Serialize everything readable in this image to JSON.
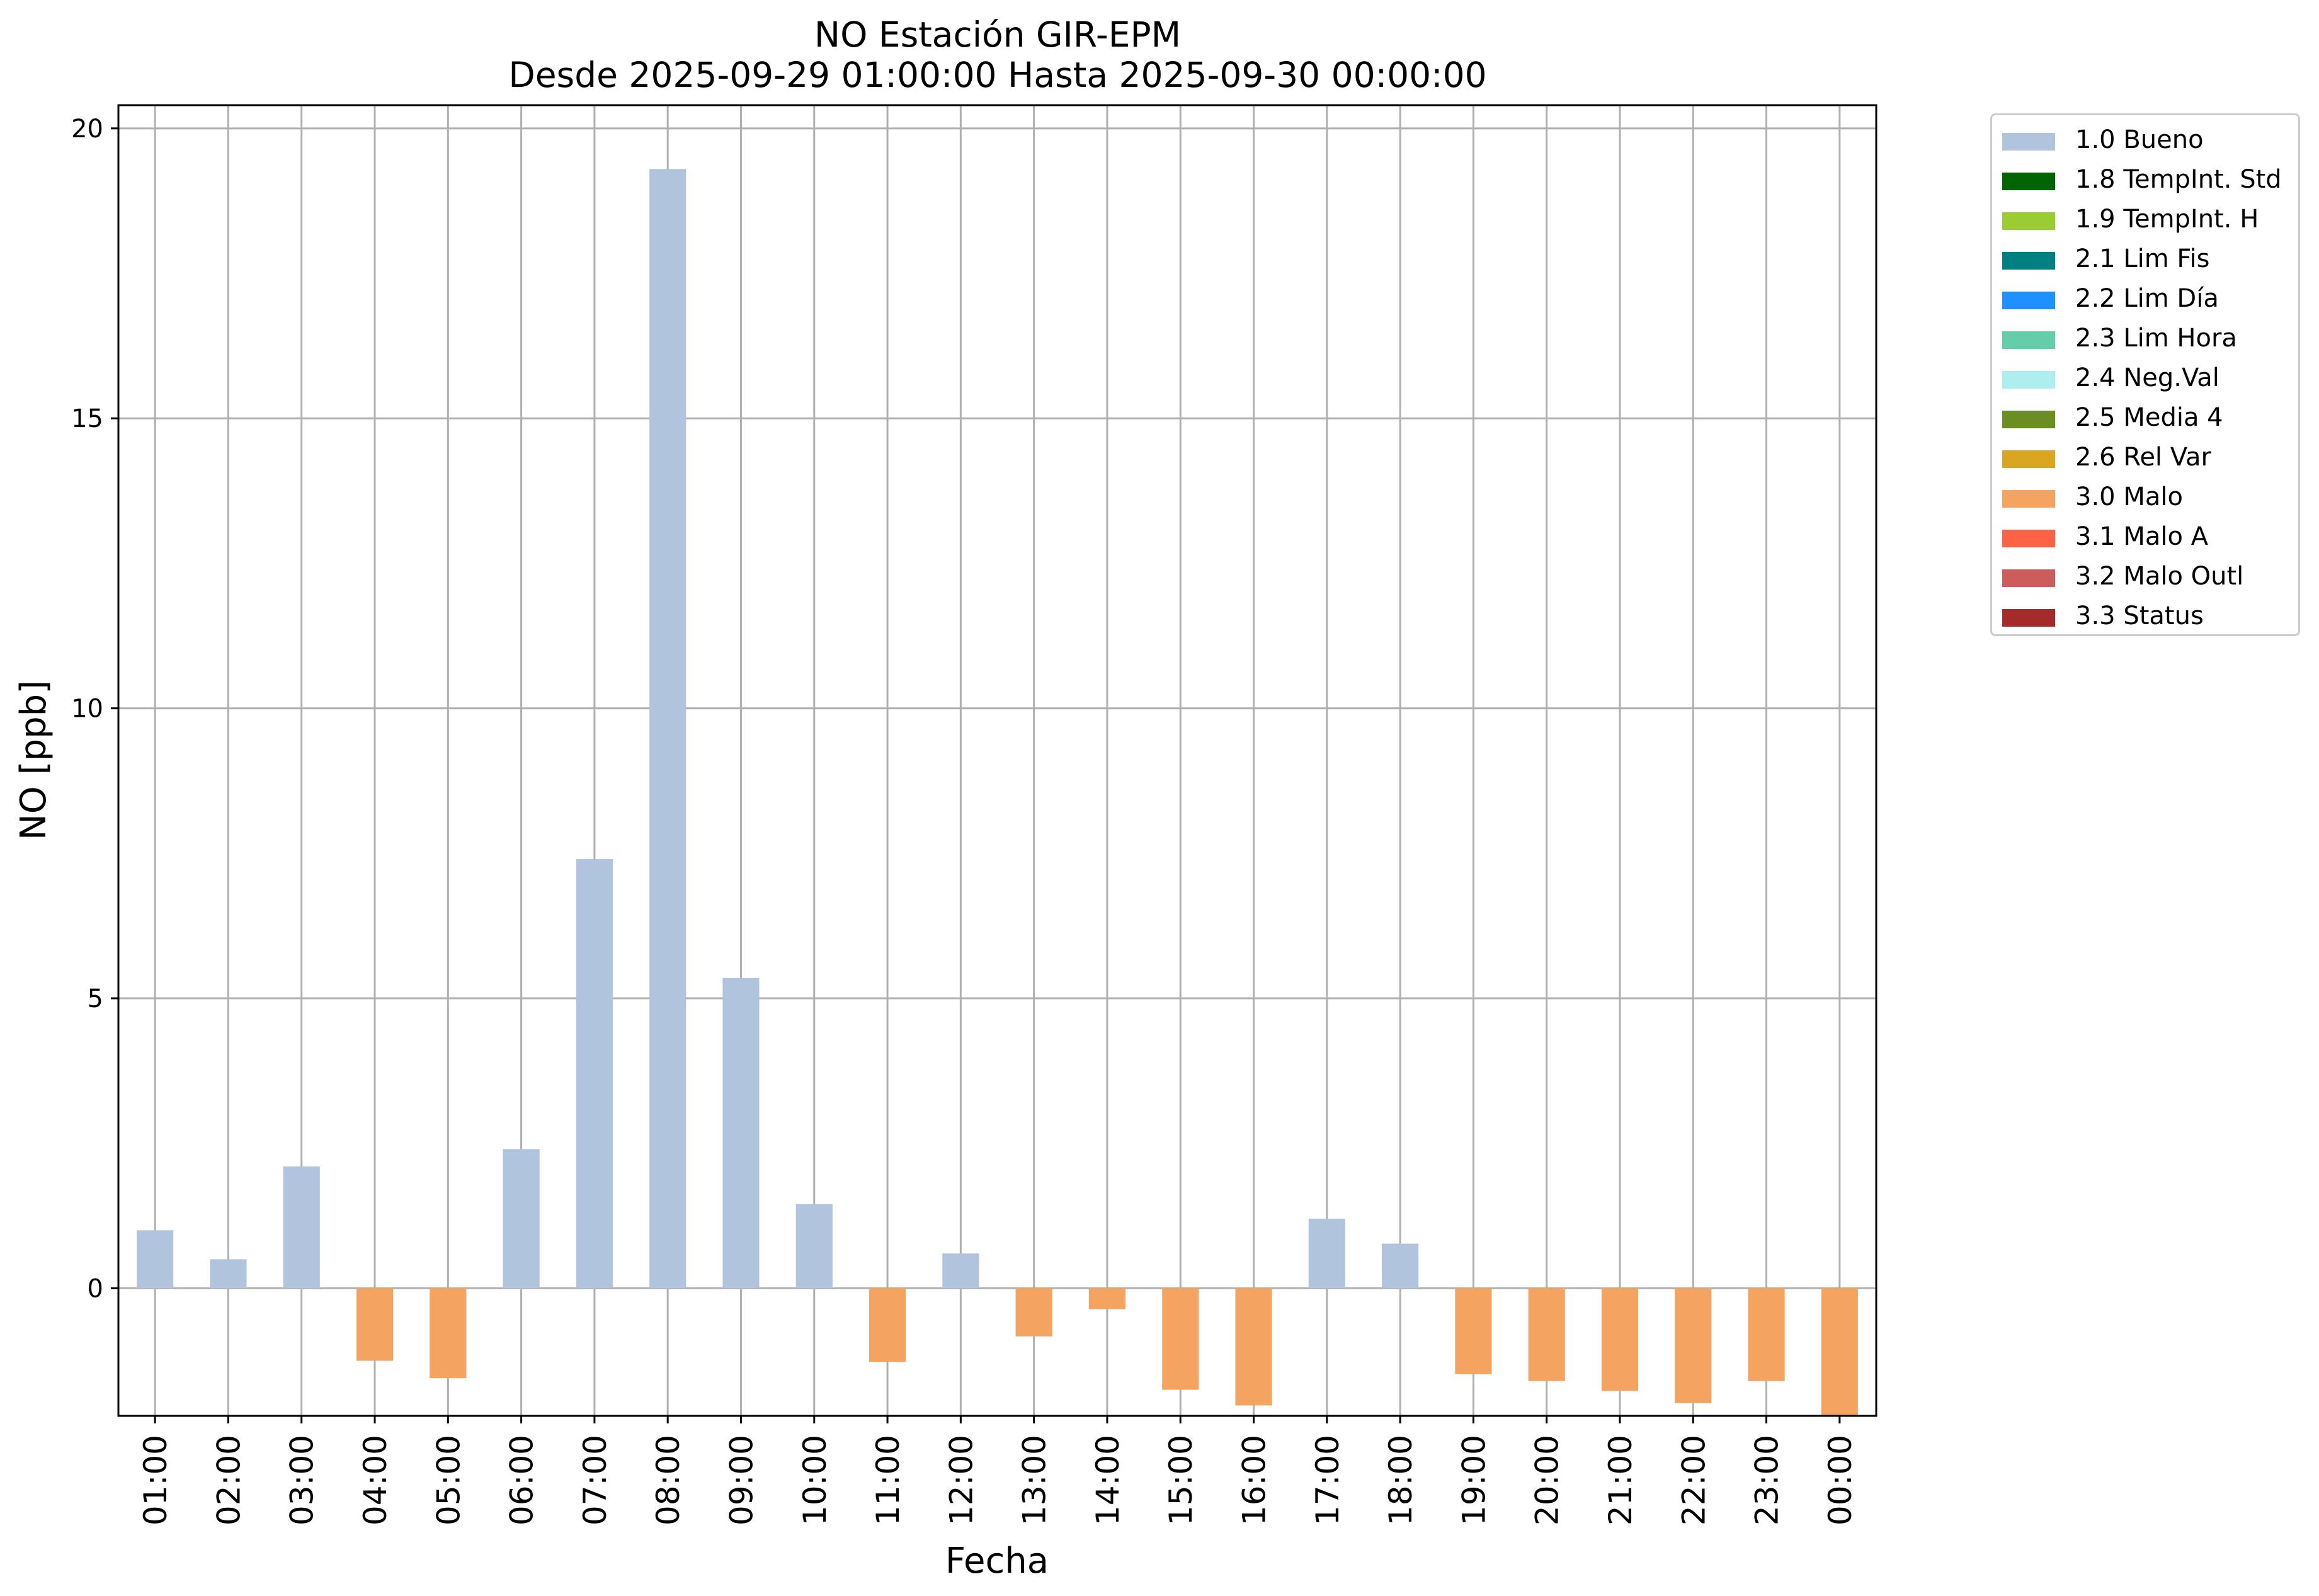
{
  "title": {
    "line1": "NO Estación GIR-EPM",
    "line2": "Desde 2025-09-29 01:00:00 Hasta 2025-09-30 00:00:00"
  },
  "chart_data": {
    "type": "bar",
    "title": "NO Estación GIR-EPM\nDesde 2025-09-29 01:00:00 Hasta 2025-09-30 00:00:00",
    "xlabel": "Fecha",
    "ylabel": "NO [ppb]",
    "ylim": [
      -2.2,
      20.4
    ],
    "yticks": [
      0,
      5,
      10,
      15,
      20
    ],
    "grid": true,
    "legend_position": "outside-right-top",
    "categories": [
      "01:00",
      "02:00",
      "03:00",
      "04:00",
      "05:00",
      "06:00",
      "07:00",
      "08:00",
      "09:00",
      "10:00",
      "11:00",
      "12:00",
      "13:00",
      "14:00",
      "15:00",
      "16:00",
      "17:00",
      "18:00",
      "19:00",
      "20:00",
      "21:00",
      "22:00",
      "23:00",
      "00:00"
    ],
    "values": [
      1.0,
      0.5,
      2.1,
      -1.25,
      -1.55,
      2.4,
      7.4,
      19.3,
      5.35,
      1.45,
      -1.27,
      0.6,
      -0.83,
      -0.36,
      -1.75,
      -2.02,
      1.2,
      0.77,
      -1.48,
      -1.6,
      -1.77,
      -1.98,
      -1.6,
      -2.2
    ],
    "flags": [
      "1.0 Bueno",
      "1.0 Bueno",
      "1.0 Bueno",
      "3.0 Malo",
      "3.0 Malo",
      "1.0 Bueno",
      "1.0 Bueno",
      "1.0 Bueno",
      "1.0 Bueno",
      "1.0 Bueno",
      "3.0 Malo",
      "1.0 Bueno",
      "3.0 Malo",
      "3.0 Malo",
      "3.0 Malo",
      "3.0 Malo",
      "1.0 Bueno",
      "1.0 Bueno",
      "3.0 Malo",
      "3.0 Malo",
      "3.0 Malo",
      "3.0 Malo",
      "3.0 Malo",
      "3.0 Malo"
    ],
    "legend": [
      {
        "label": "1.0 Bueno",
        "color": "#b0c4de"
      },
      {
        "label": "1.8 TempInt. Std",
        "color": "#006400"
      },
      {
        "label": "1.9 TempInt. H",
        "color": "#9acd32"
      },
      {
        "label": "2.1 Lim Fis",
        "color": "#008080"
      },
      {
        "label": "2.2 Lim Día",
        "color": "#1e90ff"
      },
      {
        "label": "2.3 Lim Hora",
        "color": "#66cdaa"
      },
      {
        "label": "2.4 Neg.Val",
        "color": "#afeeee"
      },
      {
        "label": "2.5 Media 4",
        "color": "#6b8e23"
      },
      {
        "label": "2.6 Rel Var",
        "color": "#daa520"
      },
      {
        "label": "3.0 Malo",
        "color": "#f4a460"
      },
      {
        "label": "3.1 Malo A",
        "color": "#ff6347"
      },
      {
        "label": "3.2 Malo Outl",
        "color": "#cd5c5c"
      },
      {
        "label": "3.3 Status",
        "color": "#a52a2a"
      }
    ]
  }
}
